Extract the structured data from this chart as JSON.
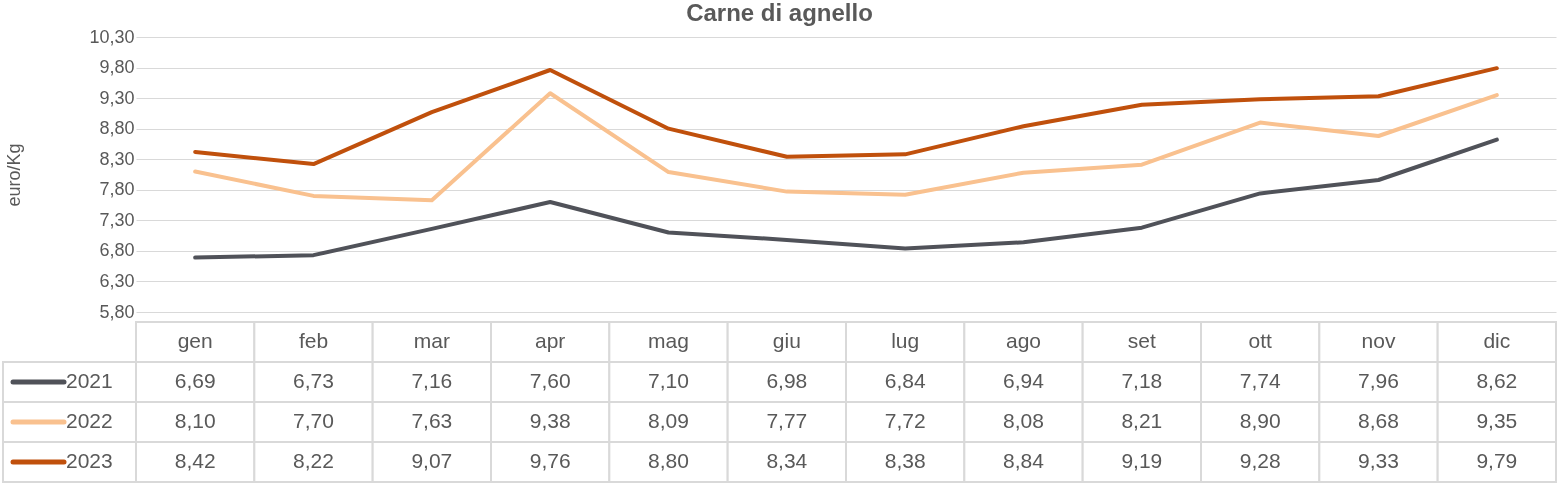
{
  "chart_data": {
    "type": "line",
    "title": "Carne di agnello",
    "ylabel": "euro/Kg",
    "categories": [
      "gen",
      "feb",
      "mar",
      "apr",
      "mag",
      "giu",
      "lug",
      "ago",
      "set",
      "ott",
      "nov",
      "dic"
    ],
    "series": [
      {
        "name": "2021",
        "color": "#505259",
        "values": [
          6.69,
          6.73,
          7.16,
          7.6,
          7.1,
          6.98,
          6.84,
          6.94,
          7.18,
          7.74,
          7.96,
          8.62
        ],
        "value_labels": [
          "6,69",
          "6,73",
          "7,16",
          "7,60",
          "7,10",
          "6,98",
          "6,84",
          "6,94",
          "7,18",
          "7,74",
          "7,96",
          "8,62"
        ]
      },
      {
        "name": "2022",
        "color": "#f9c18f",
        "values": [
          8.1,
          7.7,
          7.63,
          9.38,
          8.09,
          7.77,
          7.72,
          8.08,
          8.21,
          8.9,
          8.68,
          9.35
        ],
        "value_labels": [
          "8,10",
          "7,70",
          "7,63",
          "9,38",
          "8,09",
          "7,77",
          "7,72",
          "8,08",
          "8,21",
          "8,90",
          "8,68",
          "9,35"
        ]
      },
      {
        "name": "2023",
        "color": "#c0500c",
        "values": [
          8.42,
          8.22,
          9.07,
          9.76,
          8.8,
          8.34,
          8.38,
          8.84,
          9.19,
          9.28,
          9.33,
          9.79
        ],
        "value_labels": [
          "8,42",
          "8,22",
          "9,07",
          "9,76",
          "8,80",
          "8,34",
          "8,38",
          "8,84",
          "9,19",
          "9,28",
          "9,33",
          "9,79"
        ]
      }
    ],
    "ylim": [
      5.8,
      10.3
    ],
    "yticks": [
      {
        "value": 5.8,
        "label": "5,80"
      },
      {
        "value": 6.3,
        "label": "6,30"
      },
      {
        "value": 6.8,
        "label": "6,80"
      },
      {
        "value": 7.3,
        "label": "7,30"
      },
      {
        "value": 7.8,
        "label": "7,80"
      },
      {
        "value": 8.3,
        "label": "8,30"
      },
      {
        "value": 8.8,
        "label": "8,80"
      },
      {
        "value": 9.3,
        "label": "9,30"
      },
      {
        "value": 9.8,
        "label": "9,80"
      },
      {
        "value": 10.3,
        "label": "10,30"
      }
    ],
    "grid": "y",
    "legend": "bottom",
    "line_style": "solid",
    "marker": "none"
  }
}
